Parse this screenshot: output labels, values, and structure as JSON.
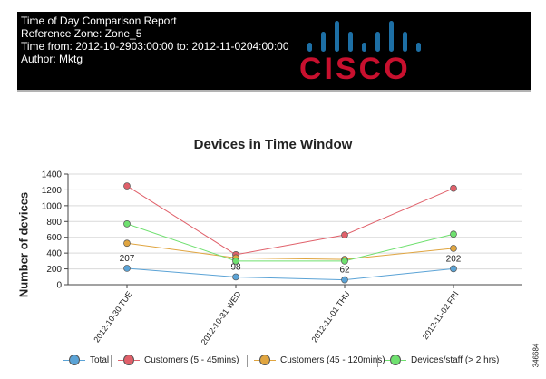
{
  "header": {
    "lines": [
      "Time of Day Comparison Report",
      "Reference Zone: Zone_5",
      "Time from: 2012-10-2903:00:00 to: 2012-11-0204:00:00",
      "Author: Mktg"
    ],
    "logo_text": "CISCO",
    "logo_bar_color": "#1d6fa5",
    "logo_text_color": "#c8102e"
  },
  "catalog_number": "346684",
  "chart_data": {
    "type": "line",
    "title": "Devices in Time Window",
    "xlabel": "",
    "ylabel": "Number of devices",
    "ylim": [
      0,
      1400
    ],
    "yticks": [
      0,
      200,
      400,
      600,
      800,
      1000,
      1200,
      1400
    ],
    "grid": true,
    "legend_position": "bottom",
    "categories": [
      "2012-10-30 TUE",
      "2012-10-31 WED",
      "2012-11-01 THU",
      "2012-11-02 FRI"
    ],
    "series": [
      {
        "name": "Total",
        "color": "#5ba3d6",
        "values": [
          207,
          98,
          62,
          202
        ],
        "data_labels": [
          "207",
          "98",
          "62",
          "202"
        ]
      },
      {
        "name": "Customers (5 - 45mins)",
        "color": "#e0606a",
        "values": [
          1250,
          380,
          630,
          1220
        ]
      },
      {
        "name": "Customers (45 - 120mins)",
        "color": "#e0a540",
        "values": [
          525,
          340,
          320,
          460
        ]
      },
      {
        "name": "Devices/staff (> 2 hrs)",
        "color": "#6fe06f",
        "values": [
          770,
          300,
          300,
          640
        ]
      }
    ]
  }
}
